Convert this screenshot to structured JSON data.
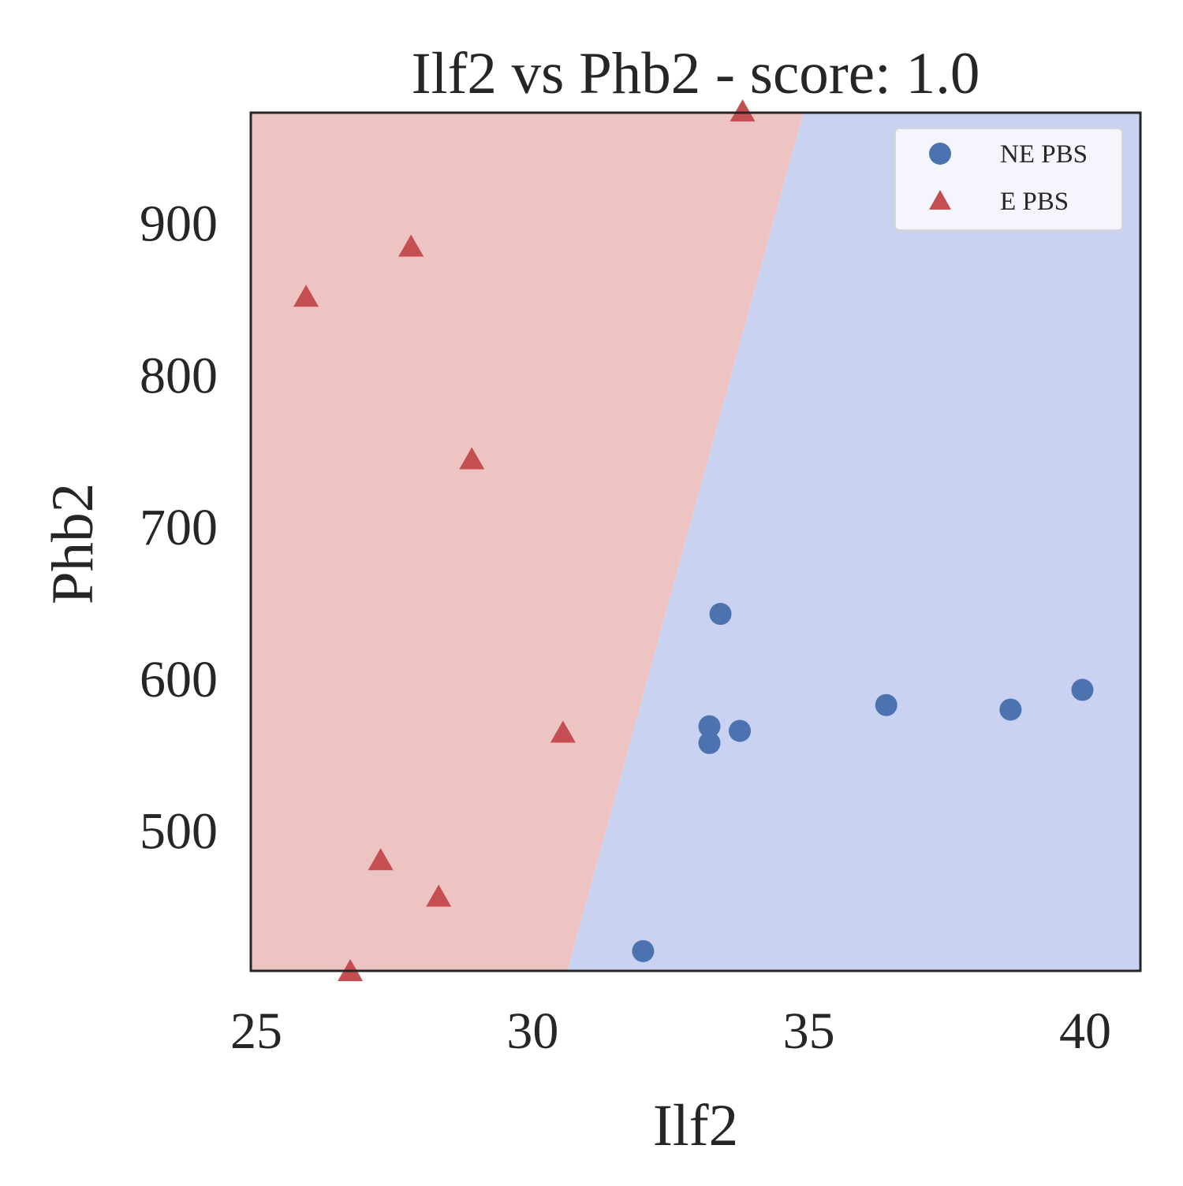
{
  "chart_data": {
    "type": "scatter",
    "title": "Ilf2 vs Phb2 - score: 1.0",
    "xlabel": "Ilf2",
    "ylabel": "Phb2",
    "xlim": [
      24.9,
      41.0
    ],
    "ylim": [
      408,
      973
    ],
    "x_ticks": [
      25,
      30,
      35,
      40
    ],
    "y_ticks": [
      500,
      600,
      700,
      800,
      900
    ],
    "grid": false,
    "legend_position": "top-right",
    "decision_boundary": {
      "points": [
        [
          30.63,
          408
        ],
        [
          34.9,
          973
        ]
      ],
      "left_region_class": "E PBS",
      "right_region_class": "NE PBS"
    },
    "colors": {
      "NE PBS": "#4c72b0",
      "E PBS": "#c44e52",
      "region_E": "#eec4c3",
      "region_NE": "#c9d2f1"
    },
    "series": [
      {
        "name": "NE PBS",
        "marker": "circle",
        "points": [
          [
            32.0,
            421
          ],
          [
            33.2,
            558
          ],
          [
            33.2,
            569
          ],
          [
            33.4,
            643
          ],
          [
            33.75,
            566
          ],
          [
            36.4,
            583
          ],
          [
            38.65,
            580
          ],
          [
            39.95,
            593
          ]
        ]
      },
      {
        "name": "E PBS",
        "marker": "triangle",
        "points": [
          [
            25.9,
            852
          ],
          [
            26.7,
            408
          ],
          [
            27.25,
            481
          ],
          [
            27.8,
            885
          ],
          [
            28.3,
            457
          ],
          [
            28.9,
            745
          ],
          [
            30.55,
            565
          ],
          [
            33.8,
            974
          ]
        ]
      }
    ]
  }
}
